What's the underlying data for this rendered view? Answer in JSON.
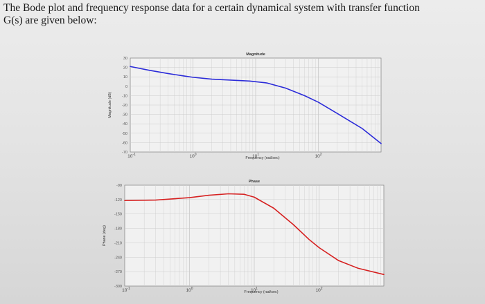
{
  "prompt": {
    "line1": "The Bode plot and frequency response data for a certain dynamical system with transfer function",
    "line2": "G(s) are given below:"
  },
  "chart_data": [
    {
      "type": "line",
      "title": "Magnitude",
      "xlabel": "Frequency (rad/sec)",
      "ylabel": "Magnitude (dB)",
      "xscale": "log",
      "xlim": [
        0.1,
        1000
      ],
      "ylim": [
        -70,
        30
      ],
      "xticks": [
        "10^-1",
        "10^0",
        "10^1",
        "10^2"
      ],
      "xtick_values": [
        0.1,
        1,
        10,
        100
      ],
      "yticks": [
        30,
        20,
        10,
        0,
        -10,
        -20,
        -30,
        -40,
        -50,
        -60,
        -70
      ],
      "grid": true,
      "series": [
        {
          "color": "#2b2bd9",
          "x": [
            0.1,
            0.2,
            0.4,
            0.7,
            1,
            2,
            4,
            8,
            15,
            30,
            60,
            100,
            200,
            500,
            1000
          ],
          "y": [
            21,
            17,
            13.5,
            11,
            9.5,
            7.5,
            6.5,
            5.5,
            3.5,
            -2,
            -10,
            -17,
            -29,
            -45,
            -61
          ]
        }
      ]
    },
    {
      "type": "line",
      "title": "Phase",
      "xlabel": "Frequency (rad/sec)",
      "ylabel": "Phase (deg)",
      "xscale": "log",
      "xlim": [
        0.1,
        1000
      ],
      "ylim": [
        -300,
        -90
      ],
      "xticks": [
        "10^-1",
        "10^0",
        "10^1",
        "10^2"
      ],
      "xtick_values": [
        0.1,
        1,
        10,
        100
      ],
      "yticks": [
        -90,
        -120,
        -150,
        -180,
        -210,
        -240,
        -270,
        -300
      ],
      "grid": true,
      "series": [
        {
          "color": "#d62020",
          "x": [
            0.1,
            0.3,
            1,
            2,
            4,
            7,
            10,
            20,
            40,
            70,
            100,
            200,
            400,
            1000
          ],
          "y": [
            -122,
            -121,
            -116,
            -111,
            -108,
            -109,
            -115,
            -138,
            -172,
            -203,
            -220,
            -247,
            -263,
            -276
          ]
        }
      ]
    }
  ]
}
